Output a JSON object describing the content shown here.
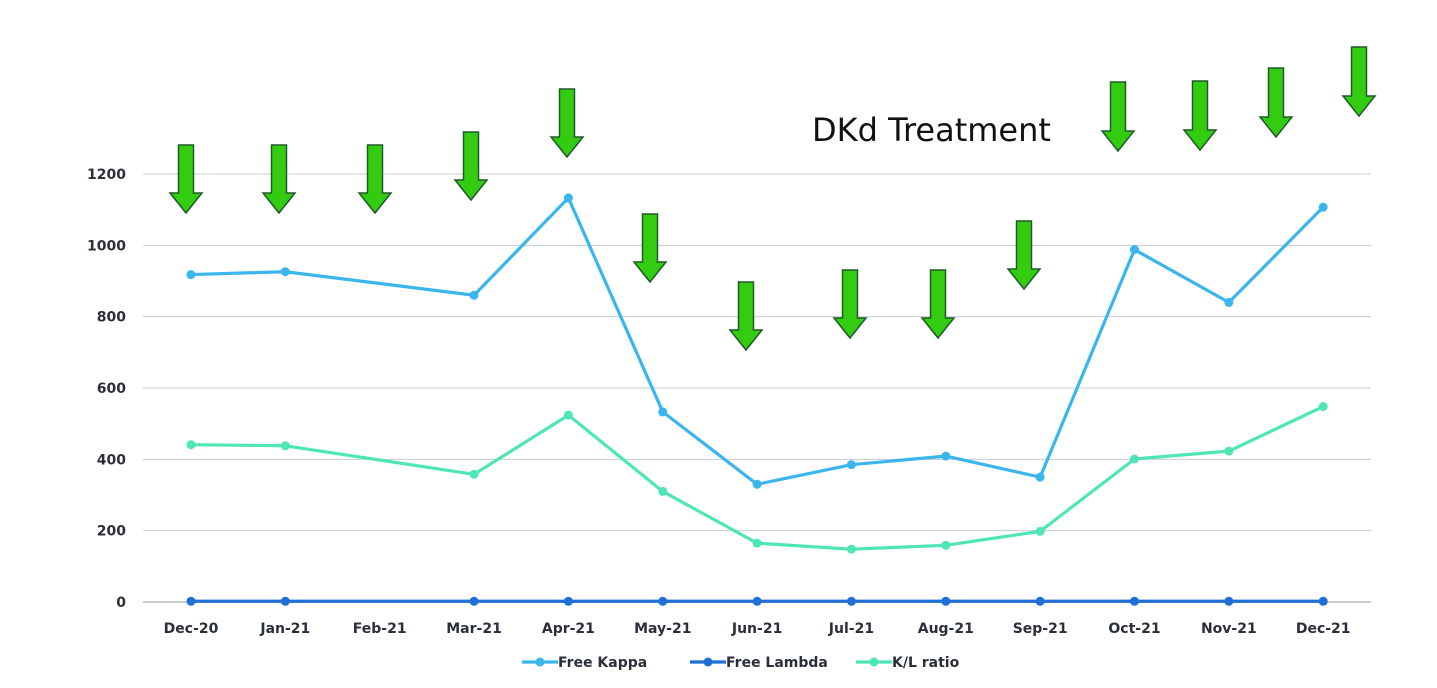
{
  "chart_data": {
    "type": "line",
    "title": "DKd Treatment",
    "categories": [
      "Dec-20",
      "Jan-21",
      "Feb-21",
      "Mar-21",
      "Apr-21",
      "May-21",
      "Jun-21",
      "Jul-21",
      "Aug-21",
      "Sep-21",
      "Oct-21",
      "Nov-21",
      "Dec-21"
    ],
    "ylim": [
      0,
      1200
    ],
    "yticks": [
      0,
      200,
      400,
      600,
      800,
      1000,
      1200
    ],
    "grid": true,
    "legend_position": "bottom",
    "series": [
      {
        "name": "Free Kappa",
        "color": "#3bb6ec",
        "values": [
          918,
          926,
          null,
          860,
          1133,
          533,
          330,
          385,
          409,
          350,
          988,
          840,
          1107
        ]
      },
      {
        "name": "Free Lambda",
        "color": "#1f6fd6",
        "values": [
          2,
          2,
          null,
          2,
          2,
          2,
          2,
          2,
          2,
          2,
          2,
          2,
          2
        ]
      },
      {
        "name": "K/L ratio",
        "color": "#4fe6b5",
        "values": [
          441,
          438,
          null,
          358,
          524,
          310,
          165,
          148,
          159,
          198,
          401,
          423,
          548
        ]
      }
    ],
    "treatment_marker_color": "#33cc11"
  }
}
